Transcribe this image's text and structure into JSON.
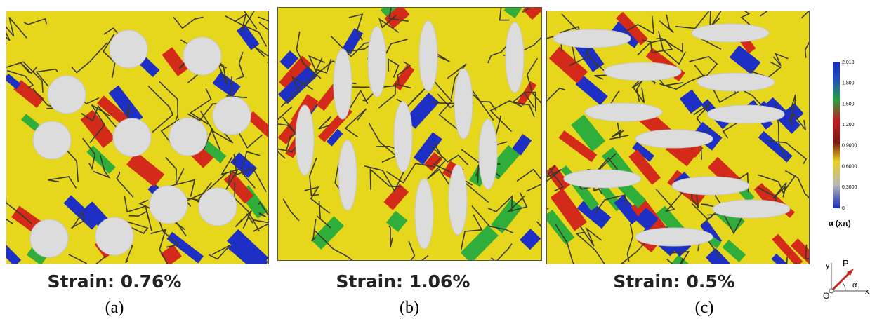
{
  "panels": [
    {
      "caption": "Strain: 0.76%",
      "label": "(a)"
    },
    {
      "caption": "Strain: 1.06%",
      "label": "(b)"
    },
    {
      "caption": "Strain: 0.5%",
      "label": "(c)"
    }
  ],
  "colorbar": {
    "ticks": [
      "2.010",
      "1.800",
      "1.500",
      "1.200",
      "0.9000",
      "0.6000",
      "0.3000",
      "0"
    ],
    "title": "α (xπ)"
  },
  "axes_icon": {
    "y": "y",
    "x": "x",
    "origin": "O",
    "vector": "P",
    "angle": "α"
  }
}
